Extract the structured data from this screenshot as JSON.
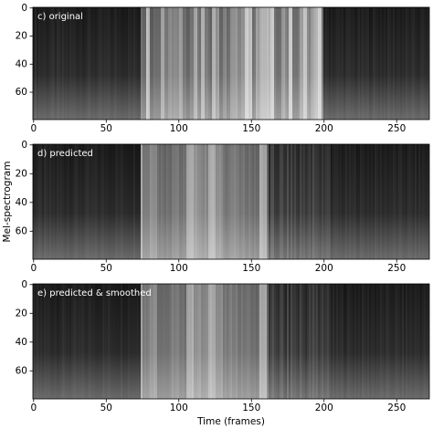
{
  "chart_data": [
    {
      "type": "image",
      "title": "c) original",
      "xlim": [
        -0.5,
        272.5
      ],
      "ylim": [
        -0.5,
        79.5
      ],
      "y_inverted": true,
      "xticks": [
        0,
        50,
        100,
        150,
        200,
        250
      ],
      "yticks": [
        0,
        20,
        40,
        60
      ]
    },
    {
      "type": "image",
      "title": "d) predicted",
      "xlim": [
        -0.5,
        272.5
      ],
      "ylim": [
        -0.5,
        79.5
      ],
      "y_inverted": true,
      "xticks": [
        0,
        50,
        100,
        150,
        200,
        250
      ],
      "yticks": [
        0,
        20,
        40,
        60
      ],
      "ylabel": "Mel-spectrogram"
    },
    {
      "type": "image",
      "title": "e) predicted & smoothed",
      "xlim": [
        -0.5,
        272.5
      ],
      "ylim": [
        -0.5,
        79.5
      ],
      "y_inverted": true,
      "xticks": [
        0,
        50,
        100,
        150,
        200,
        250
      ],
      "yticks": [
        0,
        20,
        40,
        60
      ],
      "xlabel": "Time (frames)"
    }
  ]
}
